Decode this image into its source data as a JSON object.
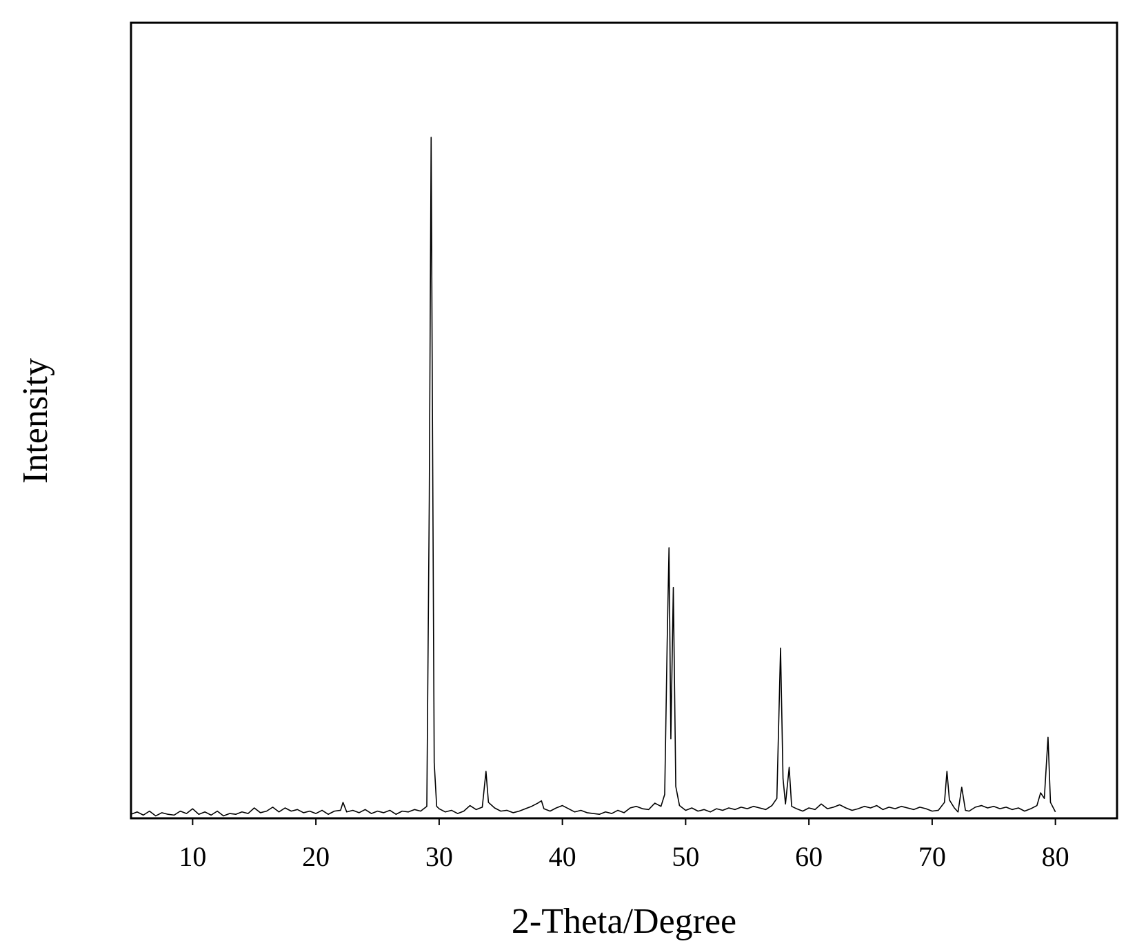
{
  "chart_data": {
    "type": "line",
    "x_label": "2-Theta/Degree",
    "y_label": "Intensity",
    "xlim": [
      5,
      85
    ],
    "xticks": [
      10,
      20,
      30,
      40,
      50,
      60,
      70,
      80
    ],
    "ylim": [
      0,
      100
    ],
    "grid": false,
    "color": "#000000",
    "x": [
      5,
      5.5,
      6,
      6.5,
      7,
      7.5,
      8,
      8.5,
      9,
      9.5,
      10,
      10.5,
      11,
      11.5,
      12,
      12.5,
      13,
      13.5,
      14,
      14.5,
      15,
      15.5,
      16,
      16.5,
      17,
      17.5,
      18,
      18.5,
      19,
      19.5,
      20,
      20.5,
      21,
      21.5,
      22,
      22.2,
      22.5,
      23,
      23.5,
      24,
      24.5,
      25,
      25.5,
      26,
      26.5,
      27,
      27.5,
      28,
      28.5,
      29,
      29.2,
      29.35,
      29.45,
      29.6,
      29.8,
      30,
      30.5,
      31,
      31.5,
      32,
      32.5,
      33,
      33.5,
      33.8,
      34,
      34.5,
      35,
      35.5,
      36,
      36.5,
      37,
      37.5,
      38,
      38.3,
      38.5,
      39,
      39.5,
      40,
      40.5,
      41,
      41.5,
      42,
      42.5,
      43,
      43.5,
      44,
      44.5,
      45,
      45.5,
      46,
      46.5,
      47,
      47.5,
      48,
      48.3,
      48.5,
      48.65,
      48.8,
      49,
      49.2,
      49.5,
      50,
      50.5,
      51,
      51.5,
      52,
      52.5,
      53,
      53.5,
      54,
      54.5,
      55,
      55.5,
      56,
      56.5,
      57,
      57.4,
      57.7,
      57.9,
      58.1,
      58.4,
      58.6,
      59,
      59.5,
      60,
      60.5,
      61,
      61.5,
      62,
      62.5,
      63,
      63.5,
      64,
      64.5,
      65,
      65.5,
      66,
      66.5,
      67,
      67.5,
      68,
      68.5,
      69,
      69.5,
      70,
      70.5,
      71,
      71.2,
      71.4,
      71.8,
      72.1,
      72.4,
      72.7,
      73,
      73.5,
      74,
      74.5,
      75,
      75.5,
      76,
      76.5,
      77,
      77.5,
      78,
      78.5,
      78.8,
      79.1,
      79.4,
      79.6,
      80
    ],
    "values": [
      0.5,
      0.8,
      0.4,
      0.9,
      0.3,
      0.7,
      0.5,
      0.4,
      0.9,
      0.6,
      1.2,
      0.5,
      0.8,
      0.4,
      0.9,
      0.3,
      0.6,
      0.5,
      0.8,
      0.6,
      1.3,
      0.7,
      0.9,
      1.4,
      0.8,
      1.3,
      0.9,
      1.1,
      0.7,
      0.9,
      0.6,
      1.0,
      0.5,
      0.9,
      1.0,
      2.0,
      0.8,
      1.0,
      0.7,
      1.1,
      0.6,
      0.9,
      0.7,
      1.0,
      0.5,
      0.9,
      0.8,
      1.1,
      0.9,
      1.5,
      40,
      85.6,
      53,
      7,
      1.5,
      1.2,
      0.8,
      1.0,
      0.6,
      0.9,
      1.6,
      1.1,
      1.4,
      5.9,
      2.0,
      1.3,
      0.9,
      1.0,
      0.7,
      0.9,
      1.2,
      1.5,
      1.9,
      2.2,
      1.2,
      0.9,
      1.3,
      1.6,
      1.2,
      0.8,
      1.0,
      0.7,
      0.6,
      0.5,
      0.8,
      0.6,
      1.0,
      0.7,
      1.3,
      1.5,
      1.2,
      1.1,
      1.9,
      1.5,
      3.0,
      22,
      34,
      10,
      29,
      4,
      1.6,
      1.0,
      1.3,
      0.9,
      1.1,
      0.8,
      1.2,
      1.0,
      1.3,
      1.1,
      1.4,
      1.2,
      1.5,
      1.3,
      1.1,
      1.6,
      2.5,
      21.4,
      5,
      1.8,
      6.4,
      1.5,
      1.2,
      0.9,
      1.3,
      1.1,
      1.8,
      1.2,
      1.4,
      1.7,
      1.3,
      1.0,
      1.2,
      1.5,
      1.3,
      1.6,
      1.1,
      1.4,
      1.2,
      1.5,
      1.3,
      1.1,
      1.4,
      1.2,
      0.9,
      1.0,
      2.0,
      5.9,
      2.3,
      1.3,
      0.8,
      3.9,
      1.0,
      0.9,
      1.4,
      1.6,
      1.3,
      1.5,
      1.2,
      1.4,
      1.1,
      1.3,
      0.9,
      1.2,
      1.6,
      3.2,
      2.5,
      10.2,
      2.0,
      0.8
    ]
  }
}
